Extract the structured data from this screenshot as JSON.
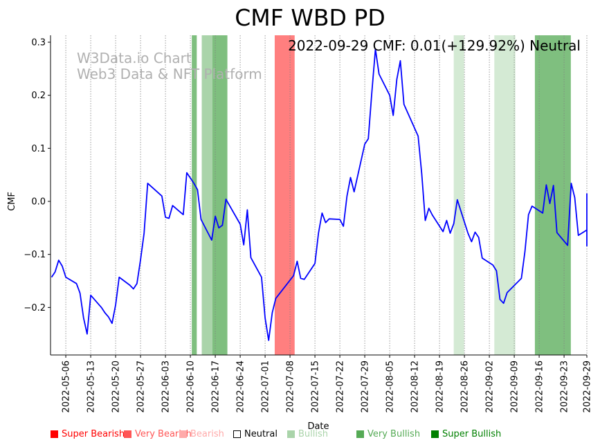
{
  "chart_data": {
    "type": "line",
    "title": "CMF WBD PD",
    "xlabel": "Date",
    "ylabel": "CMF",
    "annotation": "2022-09-29 CMF: 0.01(+129.92%) Neutral",
    "watermark": [
      "W3Data.io Chart",
      "Web3 Data & NFT Platform"
    ],
    "x_start_date": "2022-05-02",
    "xlim_days": [
      0,
      150.5
    ],
    "ylim": [
      -0.29,
      0.313
    ],
    "yticks": [
      -0.2,
      -0.1,
      0.0,
      0.1,
      0.2,
      0.3
    ],
    "ytick_labels": [
      "−0.2",
      "−0.1",
      "0.0",
      "0.1",
      "0.2",
      "0.3"
    ],
    "xticks_days": [
      4,
      11,
      18,
      25,
      32,
      39,
      46,
      53,
      60,
      67,
      74,
      81,
      88,
      95,
      102,
      109,
      116,
      123,
      130,
      137,
      144,
      150
    ],
    "xtick_labels": [
      "2022-05-06",
      "2022-05-13",
      "2022-05-20",
      "2022-05-27",
      "2022-06-03",
      "2022-06-10",
      "2022-06-17",
      "2022-06-24",
      "2022-07-01",
      "2022-07-08",
      "2022-07-15",
      "2022-07-22",
      "2022-07-29",
      "2022-08-05",
      "2022-08-12",
      "2022-08-19",
      "2022-08-26",
      "2022-09-02",
      "2022-09-09",
      "2022-09-16",
      "2022-09-23",
      "2022-09-29"
    ],
    "grid": "x-dotted",
    "line_color": "#0000ff",
    "series": [
      {
        "name": "CMF",
        "points": [
          [
            0,
            -0.143
          ],
          [
            1,
            -0.133
          ],
          [
            2,
            -0.111
          ],
          [
            3,
            -0.122
          ],
          [
            4,
            -0.143
          ],
          [
            7,
            -0.155
          ],
          [
            8,
            -0.173
          ],
          [
            9,
            -0.22
          ],
          [
            10,
            -0.25
          ],
          [
            11,
            -0.177
          ],
          [
            14,
            -0.2
          ],
          [
            15,
            -0.21
          ],
          [
            16,
            -0.218
          ],
          [
            17,
            -0.23
          ],
          [
            18,
            -0.195
          ],
          [
            19,
            -0.143
          ],
          [
            22,
            -0.158
          ],
          [
            23,
            -0.165
          ],
          [
            24,
            -0.155
          ],
          [
            25,
            -0.11
          ],
          [
            26,
            -0.06
          ],
          [
            27,
            0.034
          ],
          [
            31,
            0.01
          ],
          [
            32,
            -0.03
          ],
          [
            33,
            -0.032
          ],
          [
            34,
            -0.008
          ],
          [
            37,
            -0.025
          ],
          [
            38,
            0.054
          ],
          [
            40,
            0.034
          ],
          [
            41,
            0.022
          ],
          [
            42,
            -0.034
          ],
          [
            45,
            -0.073
          ],
          [
            46,
            -0.028
          ],
          [
            47,
            -0.05
          ],
          [
            48,
            -0.045
          ],
          [
            49,
            0.004
          ],
          [
            53,
            -0.043
          ],
          [
            54,
            -0.082
          ],
          [
            55,
            -0.016
          ],
          [
            56,
            -0.106
          ],
          [
            59,
            -0.143
          ],
          [
            60,
            -0.22
          ],
          [
            61,
            -0.262
          ],
          [
            62,
            -0.21
          ],
          [
            63,
            -0.183
          ],
          [
            68,
            -0.14
          ],
          [
            69,
            -0.113
          ],
          [
            70,
            -0.145
          ],
          [
            71,
            -0.147
          ],
          [
            74,
            -0.117
          ],
          [
            75,
            -0.06
          ],
          [
            76,
            -0.022
          ],
          [
            77,
            -0.04
          ],
          [
            78,
            -0.033
          ],
          [
            81,
            -0.034
          ],
          [
            82,
            -0.047
          ],
          [
            83,
            0.01
          ],
          [
            84,
            0.045
          ],
          [
            85,
            0.018
          ],
          [
            88,
            0.108
          ],
          [
            89,
            0.118
          ],
          [
            90,
            0.207
          ],
          [
            91,
            0.287
          ],
          [
            92,
            0.24
          ],
          [
            95,
            0.2
          ],
          [
            96,
            0.162
          ],
          [
            97,
            0.23
          ],
          [
            98,
            0.265
          ],
          [
            99,
            0.183
          ],
          [
            103,
            0.123
          ],
          [
            104,
            0.052
          ],
          [
            105,
            -0.036
          ],
          [
            106,
            -0.013
          ],
          [
            107,
            -0.026
          ],
          [
            110,
            -0.057
          ],
          [
            111,
            -0.036
          ],
          [
            112,
            -0.06
          ],
          [
            113,
            -0.042
          ],
          [
            114,
            0.003
          ],
          [
            117,
            -0.06
          ],
          [
            118,
            -0.076
          ],
          [
            119,
            -0.058
          ],
          [
            120,
            -0.068
          ],
          [
            121,
            -0.107
          ],
          [
            124,
            -0.12
          ],
          [
            125,
            -0.131
          ],
          [
            126,
            -0.185
          ],
          [
            127,
            -0.192
          ],
          [
            128,
            -0.172
          ],
          [
            132,
            -0.145
          ],
          [
            133,
            -0.095
          ],
          [
            134,
            -0.025
          ],
          [
            135,
            -0.009
          ],
          [
            138,
            -0.022
          ],
          [
            139,
            0.031
          ],
          [
            140,
            -0.004
          ],
          [
            141,
            0.03
          ],
          [
            142,
            -0.059
          ],
          [
            145,
            -0.083
          ],
          [
            146,
            0.034
          ],
          [
            147,
            0.007
          ],
          [
            148,
            -0.064
          ],
          [
            153.0,
            -0.054
          ],
          [
            154.2,
            -0.084
          ],
          [
            155.2,
            -0.05
          ],
          [
            156.5,
            0.015
          ]
        ]
      }
    ],
    "bands": [
      {
        "start": 39.4,
        "end": 40.8,
        "color": "#7fbf7f",
        "level": "Very Bullish"
      },
      {
        "start": 42.2,
        "end": 45.2,
        "color": "#aad4aa",
        "level": "Bullish"
      },
      {
        "start": 45.2,
        "end": 49.4,
        "color": "#7fbf7f",
        "level": "Very Bullish"
      },
      {
        "start": 62.7,
        "end": 68.3,
        "color": "#ff7f7f",
        "level": "Very Bearish"
      },
      {
        "start": 113.0,
        "end": 115.9,
        "color": "#d4ead4",
        "level": "Bullish"
      },
      {
        "start": 124.4,
        "end": 130.3,
        "color": "#d4ead4",
        "level": "Bullish"
      },
      {
        "start": 135.8,
        "end": 145.9,
        "color": "#7fbf7f",
        "level": "Very Bullish"
      }
    ],
    "legend": [
      {
        "label": "Super Bearish",
        "color": "#ff0000",
        "text_color": "#ff0000"
      },
      {
        "label": "Very Bearish",
        "color": "#ff5555",
        "text_color": "#ff5555"
      },
      {
        "label": "Bearish",
        "color": "#ffaaaa",
        "text_color": "#ffaaaa"
      },
      {
        "label": "Neutral",
        "color": "#ffffff",
        "text_color": "#000000"
      },
      {
        "label": "Bullish",
        "color": "#aad4aa",
        "text_color": "#aad4aa"
      },
      {
        "label": "Very Bullish",
        "color": "#55aa55",
        "text_color": "#55aa55"
      },
      {
        "label": "Super Bullish",
        "color": "#008000",
        "text_color": "#008000"
      }
    ]
  }
}
